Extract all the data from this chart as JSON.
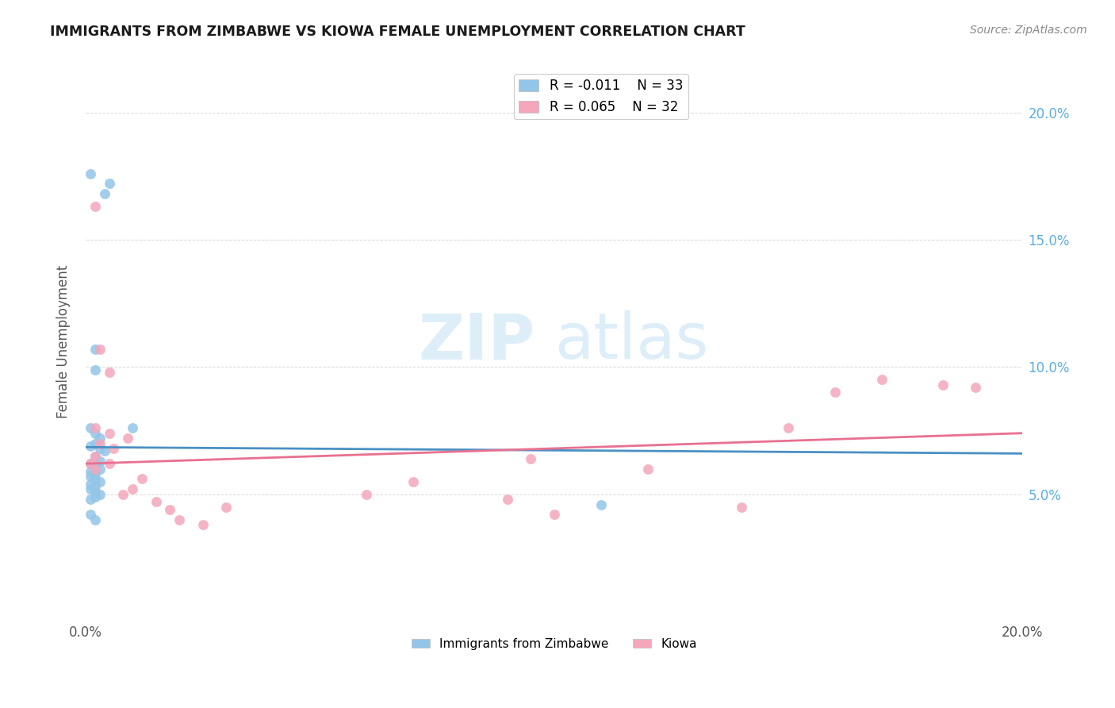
{
  "title": "IMMIGRANTS FROM ZIMBABWE VS KIOWA FEMALE UNEMPLOYMENT CORRELATION CHART",
  "source": "Source: ZipAtlas.com",
  "ylabel": "Female Unemployment",
  "xlim": [
    0.0,
    0.2
  ],
  "ylim": [
    0.0,
    0.22
  ],
  "legend_r1": "R = -0.011",
  "legend_n1": "N = 33",
  "legend_r2": "R = 0.065",
  "legend_n2": "N = 32",
  "color_blue": "#92C5E8",
  "color_pink": "#F4A7BB",
  "color_blue_line": "#4A90C4",
  "color_pink_line": "#E87090",
  "watermark_zip": "ZIP",
  "watermark_atlas": "atlas",
  "scatter_blue": [
    [
      0.001,
      0.176
    ],
    [
      0.005,
      0.172
    ],
    [
      0.004,
      0.168
    ],
    [
      0.002,
      0.107
    ],
    [
      0.002,
      0.099
    ],
    [
      0.001,
      0.076
    ],
    [
      0.002,
      0.074
    ],
    [
      0.003,
      0.072
    ],
    [
      0.002,
      0.07
    ],
    [
      0.003,
      0.068
    ],
    [
      0.001,
      0.069
    ],
    [
      0.004,
      0.067
    ],
    [
      0.002,
      0.065
    ],
    [
      0.003,
      0.063
    ],
    [
      0.001,
      0.062
    ],
    [
      0.002,
      0.061
    ],
    [
      0.003,
      0.06
    ],
    [
      0.001,
      0.059
    ],
    [
      0.002,
      0.058
    ],
    [
      0.001,
      0.057
    ],
    [
      0.002,
      0.056
    ],
    [
      0.003,
      0.055
    ],
    [
      0.001,
      0.054
    ],
    [
      0.002,
      0.053
    ],
    [
      0.001,
      0.052
    ],
    [
      0.002,
      0.051
    ],
    [
      0.003,
      0.05
    ],
    [
      0.002,
      0.049
    ],
    [
      0.001,
      0.048
    ],
    [
      0.01,
      0.076
    ],
    [
      0.001,
      0.042
    ],
    [
      0.002,
      0.04
    ],
    [
      0.11,
      0.046
    ]
  ],
  "scatter_pink": [
    [
      0.002,
      0.163
    ],
    [
      0.003,
      0.107
    ],
    [
      0.005,
      0.098
    ],
    [
      0.002,
      0.076
    ],
    [
      0.005,
      0.074
    ],
    [
      0.009,
      0.072
    ],
    [
      0.003,
      0.07
    ],
    [
      0.006,
      0.068
    ],
    [
      0.002,
      0.065
    ],
    [
      0.005,
      0.062
    ],
    [
      0.002,
      0.06
    ],
    [
      0.012,
      0.056
    ],
    [
      0.01,
      0.052
    ],
    [
      0.008,
      0.05
    ],
    [
      0.015,
      0.047
    ],
    [
      0.018,
      0.044
    ],
    [
      0.02,
      0.04
    ],
    [
      0.025,
      0.038
    ],
    [
      0.03,
      0.045
    ],
    [
      0.06,
      0.05
    ],
    [
      0.07,
      0.055
    ],
    [
      0.09,
      0.048
    ],
    [
      0.095,
      0.064
    ],
    [
      0.1,
      0.042
    ],
    [
      0.12,
      0.06
    ],
    [
      0.14,
      0.045
    ],
    [
      0.15,
      0.076
    ],
    [
      0.16,
      0.09
    ],
    [
      0.17,
      0.095
    ],
    [
      0.183,
      0.093
    ],
    [
      0.19,
      0.092
    ],
    [
      0.001,
      0.062
    ]
  ],
  "trendline_blue": {
    "x": [
      0.0,
      0.2
    ],
    "y": [
      0.0685,
      0.066
    ]
  },
  "trendline_pink": {
    "x": [
      0.0,
      0.2
    ],
    "y": [
      0.062,
      0.074
    ]
  }
}
